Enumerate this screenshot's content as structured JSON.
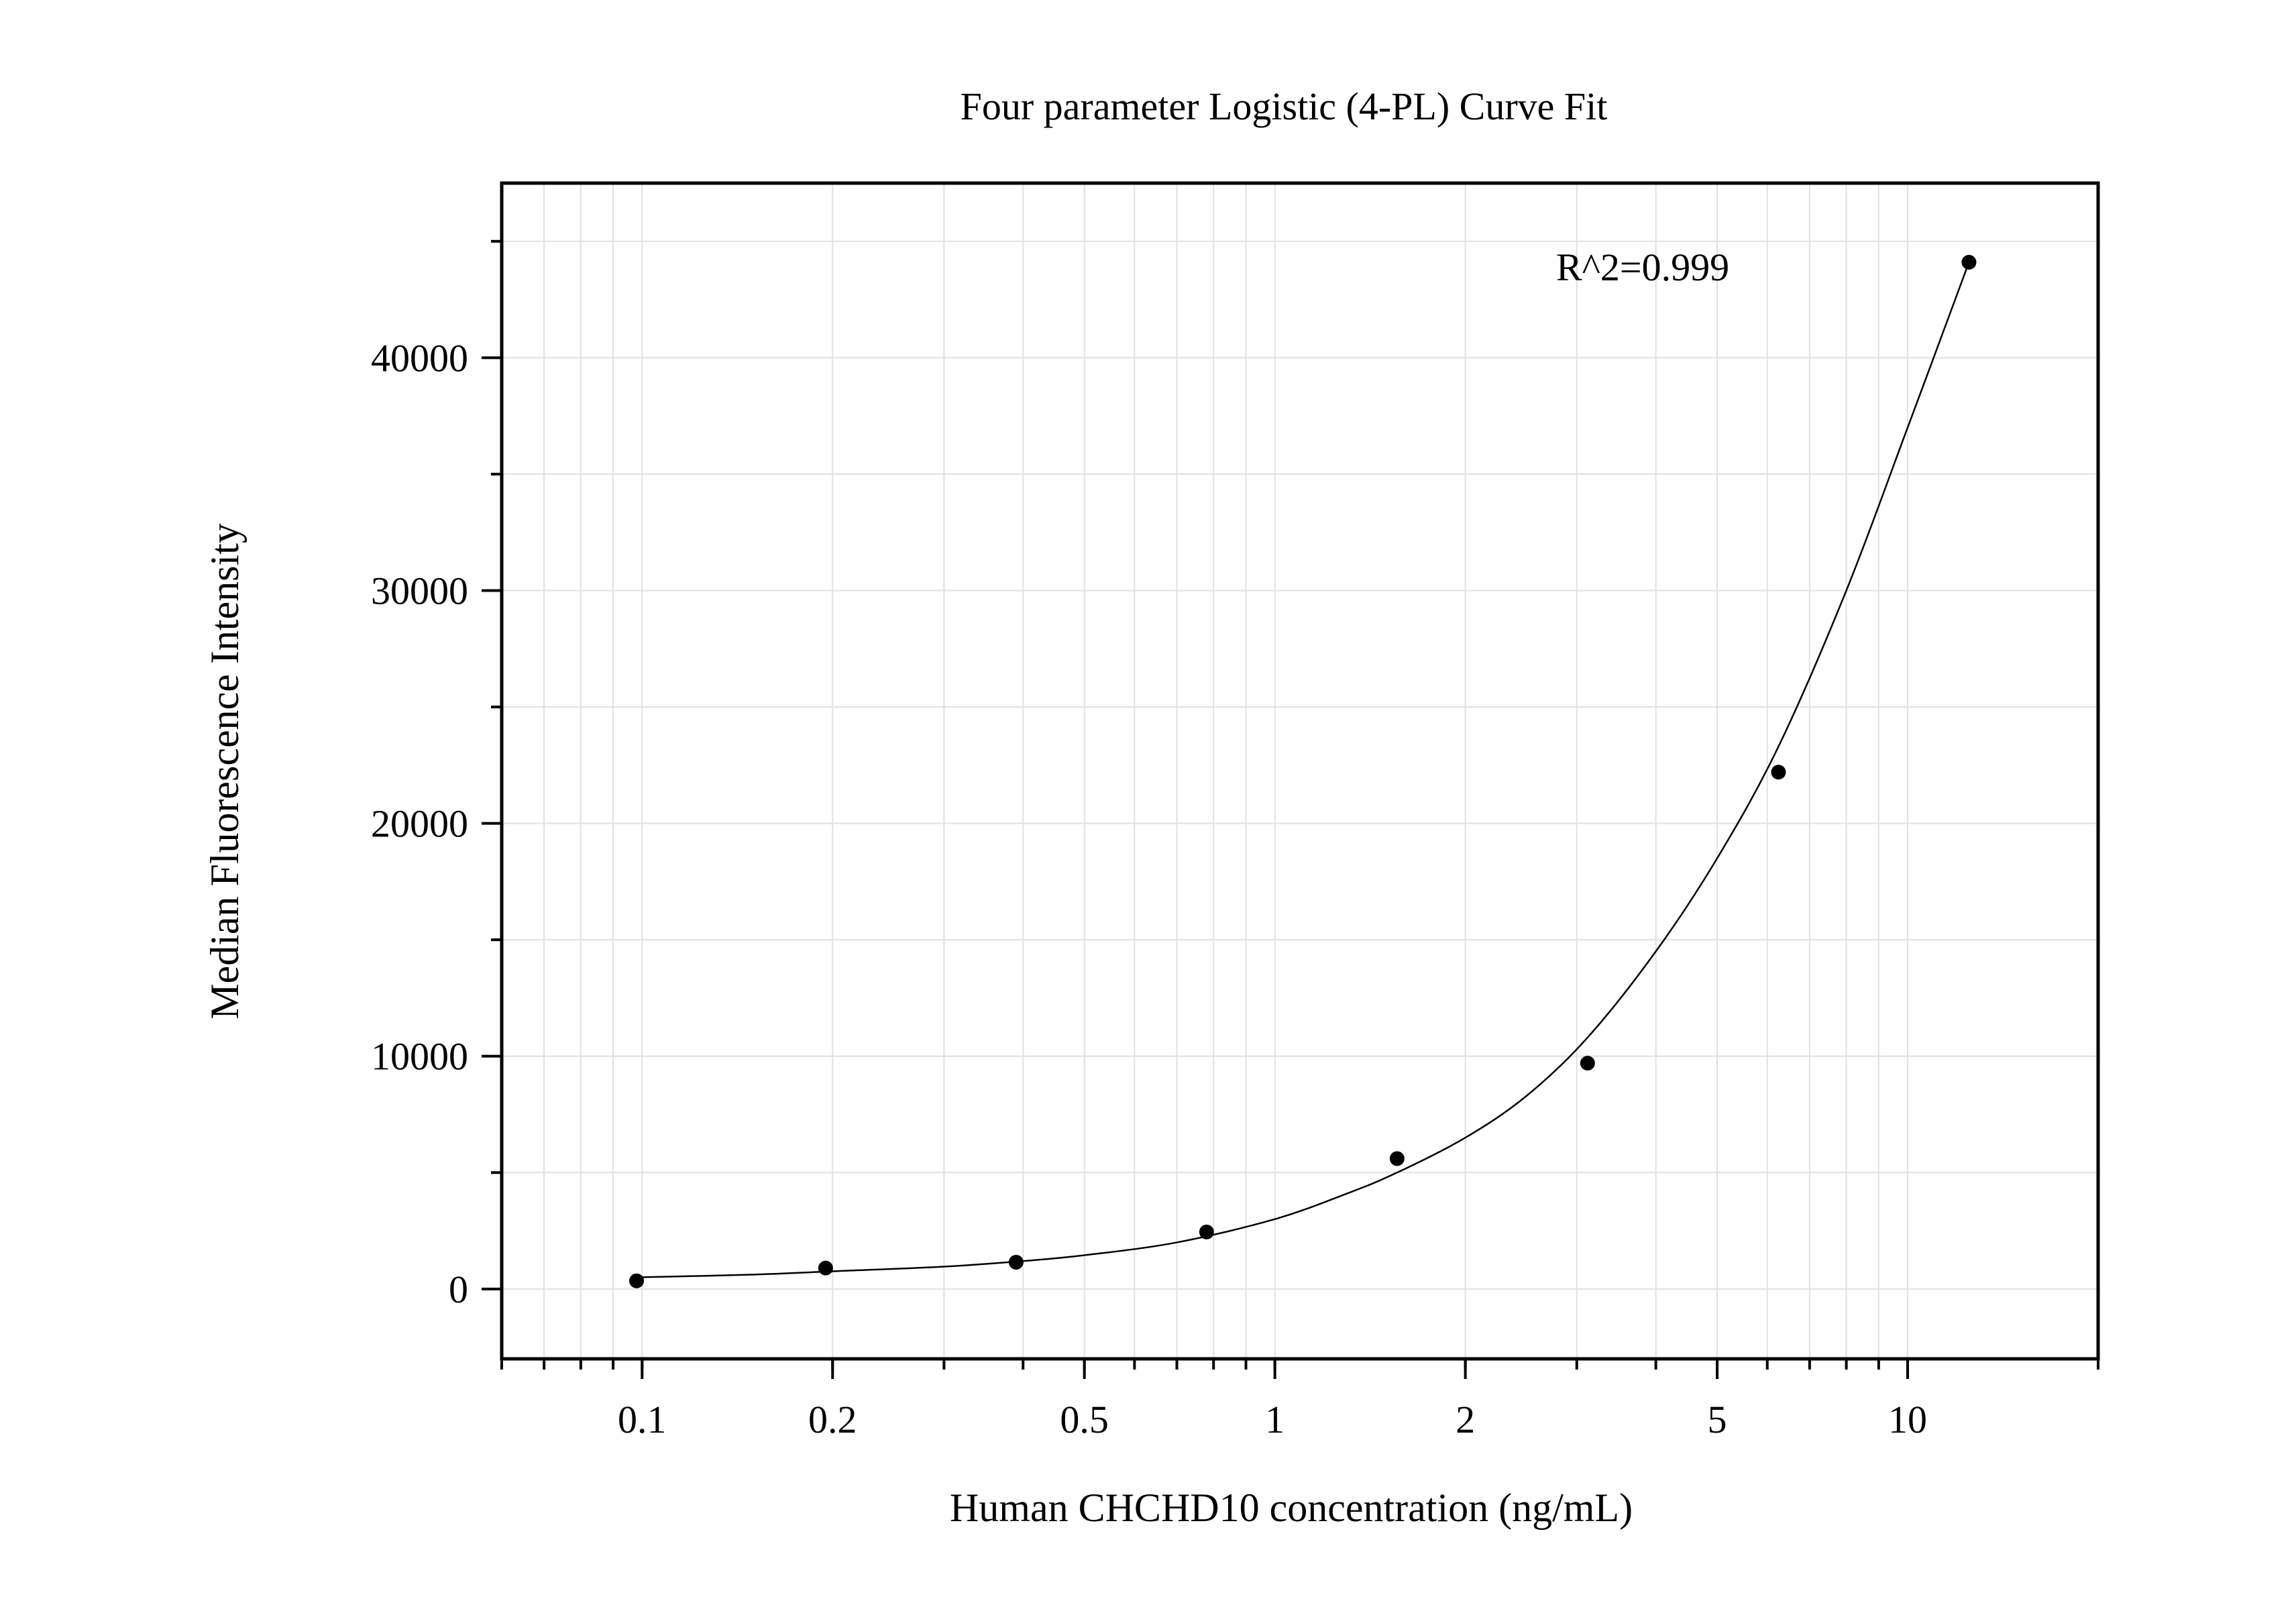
{
  "chart_data": {
    "type": "scatter",
    "title": "Four parameter Logistic (4-PL) Curve Fit",
    "xlabel": "Human CHCHD10 concentration (ng/mL)",
    "ylabel": "Median Fluorescence Intensity",
    "x_scale": "log",
    "xlim": [
      0.06,
      20
    ],
    "ylim": [
      -3000,
      47500
    ],
    "x_ticks": [
      0.1,
      0.2,
      0.5,
      1,
      2,
      5,
      10
    ],
    "x_tick_labels": [
      "0.1",
      "0.2",
      "0.5",
      "1",
      "2",
      "5",
      "10"
    ],
    "y_ticks": [
      0,
      10000,
      20000,
      30000,
      40000
    ],
    "y_tick_labels": [
      "0",
      "10000",
      "20000",
      "30000",
      "40000"
    ],
    "grid": true,
    "annotation": "R^2=0.999",
    "series": [
      {
        "points": [
          {
            "x": 0.098,
            "y": 350
          },
          {
            "x": 0.195,
            "y": 900
          },
          {
            "x": 0.39,
            "y": 1150
          },
          {
            "x": 0.78,
            "y": 2450
          },
          {
            "x": 1.56,
            "y": 5600
          },
          {
            "x": 3.12,
            "y": 9700
          },
          {
            "x": 6.25,
            "y": 22200
          },
          {
            "x": 12.5,
            "y": 44100
          }
        ]
      }
    ],
    "fit_curve": {
      "model": "4PL",
      "x": [
        0.098,
        0.15,
        0.2,
        0.3,
        0.4,
        0.5,
        0.7,
        1.0,
        1.3,
        1.56,
        2.0,
        2.5,
        3.12,
        4.0,
        5.0,
        6.25,
        8.0,
        10.0,
        12.5
      ],
      "y": [
        500,
        620,
        760,
        960,
        1200,
        1450,
        2000,
        3000,
        4100,
        5000,
        6500,
        8300,
        10800,
        14500,
        18500,
        23300,
        30000,
        37000,
        44100
      ]
    },
    "colors": {
      "points": "#000000",
      "curve": "#000000",
      "grid": "#e1e1e1",
      "axes": "#000000"
    }
  }
}
